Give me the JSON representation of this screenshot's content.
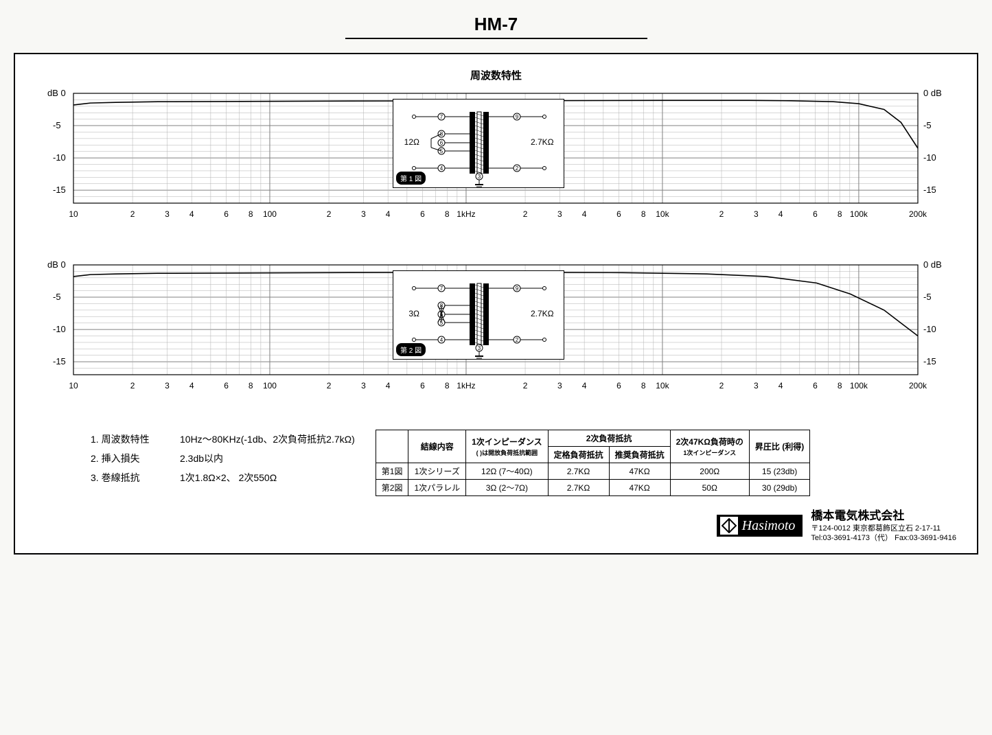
{
  "title": "HM-7",
  "chart_section_title": "周波数特性",
  "axis": {
    "y_label_left": "dB",
    "y_ticks": [
      0,
      -5,
      -10,
      -15
    ],
    "y_label_right_top": "0 dB",
    "y_right_ticks": [
      -5,
      -10,
      -15
    ],
    "x_ticks": [
      "10",
      "2",
      "3",
      "4",
      "6",
      "8",
      "100",
      "2",
      "3",
      "4",
      "6",
      "8",
      "1kHz",
      "2",
      "3",
      "4",
      "6",
      "8",
      "10k",
      "2",
      "3",
      "4",
      "6",
      "8",
      "100k",
      "200k"
    ],
    "grid_color": "#b0b0b0",
    "major_grid_color": "#808080",
    "line_color": "#000000",
    "background": "#ffffff",
    "trace_color": "#000000",
    "line_width": 1.6
  },
  "chart1": {
    "schematic_badge": "第 1 図",
    "primary_label": "12Ω",
    "secondary_label": "2.7KΩ",
    "terminals": [
      "7",
      "9",
      "8",
      "6",
      "5",
      "4",
      "3",
      "2"
    ],
    "trace": [
      [
        0,
        -1.8
      ],
      [
        0.02,
        -1.5
      ],
      [
        0.05,
        -1.4
      ],
      [
        0.1,
        -1.3
      ],
      [
        0.2,
        -1.25
      ],
      [
        0.3,
        -1.2
      ],
      [
        0.5,
        -1.15
      ],
      [
        0.7,
        -1.1
      ],
      [
        0.8,
        -1.1
      ],
      [
        0.85,
        -1.15
      ],
      [
        0.9,
        -1.3
      ],
      [
        0.93,
        -1.6
      ],
      [
        0.96,
        -2.5
      ],
      [
        0.98,
        -4.5
      ],
      [
        1.0,
        -8.5
      ]
    ]
  },
  "chart2": {
    "schematic_badge": "第 2 図",
    "primary_label": "3Ω",
    "secondary_label": "2.7KΩ",
    "terminals": [
      "7",
      "9",
      "8",
      "6",
      "5",
      "4",
      "3",
      "2"
    ],
    "trace": [
      [
        0,
        -1.8
      ],
      [
        0.02,
        -1.5
      ],
      [
        0.05,
        -1.4
      ],
      [
        0.1,
        -1.3
      ],
      [
        0.2,
        -1.25
      ],
      [
        0.3,
        -1.2
      ],
      [
        0.5,
        -1.15
      ],
      [
        0.65,
        -1.2
      ],
      [
        0.75,
        -1.4
      ],
      [
        0.82,
        -1.8
      ],
      [
        0.88,
        -2.8
      ],
      [
        0.92,
        -4.5
      ],
      [
        0.96,
        -7.0
      ],
      [
        0.98,
        -9.0
      ],
      [
        1.0,
        -11.0
      ]
    ]
  },
  "specs": [
    {
      "n": "1.",
      "label": "周波数特性",
      "value": "10Hz～80KHz(-1db、2次負荷抵抗2.7kΩ)"
    },
    {
      "n": "2.",
      "label": "挿入損失",
      "value": "2.3db以内"
    },
    {
      "n": "3.",
      "label": "巻線抵抗",
      "value": "1次1.8Ω×2、 2次550Ω"
    }
  ],
  "table": {
    "headers": {
      "c1": "",
      "c2": "結線内容",
      "c3": "1次インピーダンス",
      "c3_sub": "( )は開放負荷抵抗範囲",
      "c4_group": "2次負荷抵抗",
      "c4a": "定格負荷抵抗",
      "c4b": "推奨負荷抵抗",
      "c5": "2次47KΩ負荷時の",
      "c5_sub": "1次インピーダンス",
      "c6": "昇圧比 (利得)"
    },
    "rows": [
      {
        "c1": "第1図",
        "c2": "1次シリーズ",
        "c3": "12Ω (7～40Ω)",
        "c4a": "2.7KΩ",
        "c4b": "47KΩ",
        "c5": "200Ω",
        "c6": "15 (23db)"
      },
      {
        "c1": "第2図",
        "c2": "1次パラレル",
        "c3": "3Ω (2～7Ω)",
        "c4a": "2.7KΩ",
        "c4b": "47KΩ",
        "c5": "50Ω",
        "c6": "30 (29db)"
      }
    ]
  },
  "footer": {
    "brand": "Hasimoto",
    "company_name": "橋本電気株式会社",
    "address": "〒124-0012  東京都葛飾区立石 2-17-11",
    "contact": "Tel:03-3691-4173（代）  Fax:03-3691-9416"
  }
}
